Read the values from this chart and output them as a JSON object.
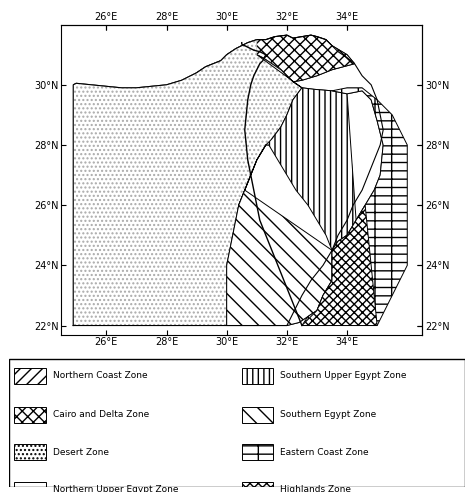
{
  "xlim": [
    24.5,
    36.5
  ],
  "ylim": [
    21.7,
    32.0
  ],
  "xticks": [
    26,
    28,
    30,
    32,
    34
  ],
  "yticks": [
    22,
    24,
    26,
    28,
    30
  ],
  "map_xlim": [
    24.7,
    36.3
  ],
  "map_ylim": [
    22.0,
    31.8
  ],
  "northern_coast": {
    "label": "Northern Coast Zone",
    "hatch": "///",
    "pts": [
      [
        24.9,
        30.1
      ],
      [
        25.2,
        30.2
      ],
      [
        26.0,
        30.3
      ],
      [
        26.8,
        30.3
      ],
      [
        27.5,
        30.25
      ],
      [
        28.0,
        30.25
      ],
      [
        28.5,
        30.3
      ],
      [
        28.9,
        30.5
      ],
      [
        29.2,
        30.7
      ],
      [
        29.5,
        30.8
      ],
      [
        29.8,
        31.0
      ],
      [
        30.0,
        31.1
      ],
      [
        30.2,
        31.2
      ],
      [
        30.5,
        31.3
      ],
      [
        30.7,
        31.4
      ],
      [
        31.0,
        31.5
      ],
      [
        31.3,
        31.5
      ],
      [
        31.6,
        31.6
      ],
      [
        32.0,
        31.65
      ],
      [
        32.2,
        31.55
      ],
      [
        32.1,
        31.45
      ],
      [
        31.9,
        31.35
      ],
      [
        31.6,
        31.3
      ],
      [
        31.3,
        31.3
      ],
      [
        31.0,
        31.25
      ],
      [
        30.7,
        31.1
      ],
      [
        30.5,
        31.0
      ],
      [
        30.2,
        30.9
      ],
      [
        30.0,
        30.8
      ],
      [
        29.8,
        30.7
      ],
      [
        29.5,
        30.6
      ],
      [
        29.2,
        30.45
      ],
      [
        29.0,
        30.3
      ],
      [
        28.5,
        30.15
      ],
      [
        28.0,
        30.0
      ],
      [
        27.5,
        29.95
      ],
      [
        27.0,
        29.9
      ],
      [
        26.5,
        29.9
      ],
      [
        26.0,
        29.95
      ],
      [
        25.5,
        30.0
      ],
      [
        25.0,
        30.0
      ],
      [
        24.9,
        30.05
      ]
    ]
  },
  "cairo_delta": {
    "label": "Cairo and Delta Zone",
    "hatch": "xxx",
    "pts": [
      [
        30.0,
        31.1
      ],
      [
        30.2,
        31.2
      ],
      [
        30.5,
        31.3
      ],
      [
        30.7,
        31.4
      ],
      [
        31.0,
        31.5
      ],
      [
        31.3,
        31.5
      ],
      [
        31.6,
        31.6
      ],
      [
        32.0,
        31.65
      ],
      [
        32.2,
        31.55
      ],
      [
        32.5,
        31.6
      ],
      [
        32.8,
        31.65
      ],
      [
        33.0,
        31.6
      ],
      [
        33.3,
        31.5
      ],
      [
        33.6,
        31.3
      ],
      [
        34.0,
        31.0
      ],
      [
        34.2,
        30.7
      ],
      [
        34.5,
        30.3
      ],
      [
        34.6,
        30.0
      ],
      [
        34.5,
        29.9
      ],
      [
        34.2,
        29.85
      ],
      [
        33.8,
        29.9
      ],
      [
        33.5,
        30.0
      ],
      [
        33.2,
        30.0
      ],
      [
        32.9,
        29.95
      ],
      [
        32.5,
        29.9
      ],
      [
        32.2,
        30.1
      ],
      [
        31.8,
        30.3
      ],
      [
        31.5,
        30.5
      ],
      [
        31.2,
        30.7
      ],
      [
        31.0,
        31.0
      ],
      [
        30.7,
        31.1
      ],
      [
        30.5,
        31.0
      ],
      [
        30.2,
        30.9
      ],
      [
        30.0,
        30.8
      ],
      [
        30.0,
        31.1
      ]
    ]
  },
  "desert": {
    "label": "Desert Zone",
    "hatch": "....",
    "pts": [
      [
        24.9,
        30.05
      ],
      [
        25.0,
        30.0
      ],
      [
        25.5,
        30.0
      ],
      [
        26.0,
        29.95
      ],
      [
        26.5,
        29.9
      ],
      [
        27.0,
        29.9
      ],
      [
        27.5,
        29.95
      ],
      [
        28.0,
        30.0
      ],
      [
        28.5,
        30.15
      ],
      [
        29.0,
        30.3
      ],
      [
        29.2,
        30.45
      ],
      [
        29.5,
        30.6
      ],
      [
        29.8,
        30.7
      ],
      [
        30.0,
        30.8
      ],
      [
        30.2,
        30.9
      ],
      [
        30.5,
        31.0
      ],
      [
        30.7,
        31.1
      ],
      [
        31.0,
        31.0
      ],
      [
        31.2,
        30.7
      ],
      [
        31.5,
        30.5
      ],
      [
        31.8,
        30.3
      ],
      [
        32.2,
        30.1
      ],
      [
        32.5,
        29.9
      ],
      [
        32.2,
        29.5
      ],
      [
        31.9,
        29.0
      ],
      [
        31.6,
        28.5
      ],
      [
        31.3,
        28.0
      ],
      [
        31.0,
        27.5
      ],
      [
        30.8,
        27.0
      ],
      [
        30.6,
        26.5
      ],
      [
        30.4,
        26.0
      ],
      [
        30.3,
        25.5
      ],
      [
        30.2,
        25.0
      ],
      [
        30.1,
        24.5
      ],
      [
        30.0,
        24.0
      ],
      [
        30.0,
        23.5
      ],
      [
        30.0,
        22.0
      ],
      [
        25.0,
        22.0
      ],
      [
        24.9,
        30.05
      ]
    ]
  },
  "northern_upper_egypt": {
    "label": "Northern Upper Egypt Zone",
    "hatch": "===",
    "pts": [
      [
        31.0,
        31.0
      ],
      [
        31.2,
        30.7
      ],
      [
        31.5,
        30.5
      ],
      [
        31.8,
        30.3
      ],
      [
        32.2,
        30.1
      ],
      [
        32.5,
        29.9
      ],
      [
        32.9,
        29.95
      ],
      [
        33.2,
        30.0
      ],
      [
        33.5,
        30.0
      ],
      [
        33.8,
        29.9
      ],
      [
        34.2,
        29.85
      ],
      [
        34.5,
        29.9
      ],
      [
        34.6,
        30.0
      ],
      [
        34.8,
        29.5
      ],
      [
        35.0,
        28.8
      ],
      [
        35.2,
        28.0
      ],
      [
        35.2,
        27.5
      ],
      [
        35.1,
        27.0
      ],
      [
        34.9,
        26.5
      ],
      [
        34.6,
        26.0
      ],
      [
        34.3,
        25.5
      ],
      [
        34.0,
        25.0
      ],
      [
        33.7,
        24.8
      ],
      [
        33.5,
        24.5
      ],
      [
        33.3,
        25.0
      ],
      [
        33.0,
        25.5
      ],
      [
        32.7,
        26.0
      ],
      [
        32.3,
        26.5
      ],
      [
        32.0,
        27.0
      ],
      [
        31.7,
        27.5
      ],
      [
        31.4,
        28.0
      ],
      [
        31.1,
        28.5
      ],
      [
        30.8,
        29.0
      ],
      [
        30.6,
        29.5
      ],
      [
        30.5,
        30.0
      ],
      [
        30.8,
        30.5
      ],
      [
        31.0,
        31.0
      ]
    ]
  },
  "southern_upper_egypt": {
    "label": "Southern Upper Egypt Zone",
    "hatch": "|||",
    "pts": [
      [
        30.0,
        24.0
      ],
      [
        30.1,
        24.5
      ],
      [
        30.2,
        25.0
      ],
      [
        30.3,
        25.5
      ],
      [
        30.4,
        26.0
      ],
      [
        30.6,
        26.5
      ],
      [
        30.8,
        27.0
      ],
      [
        31.0,
        27.5
      ],
      [
        31.3,
        28.0
      ],
      [
        31.4,
        28.0
      ],
      [
        31.7,
        27.5
      ],
      [
        32.0,
        27.0
      ],
      [
        32.3,
        26.5
      ],
      [
        32.7,
        26.0
      ],
      [
        33.0,
        25.5
      ],
      [
        33.3,
        25.0
      ],
      [
        33.5,
        24.5
      ],
      [
        33.5,
        24.0
      ],
      [
        33.5,
        23.5
      ],
      [
        33.2,
        23.0
      ],
      [
        33.0,
        22.8
      ],
      [
        32.7,
        22.5
      ],
      [
        32.4,
        22.3
      ],
      [
        32.0,
        22.1
      ],
      [
        31.6,
        22.0
      ],
      [
        31.2,
        22.0
      ],
      [
        30.8,
        22.0
      ],
      [
        30.5,
        22.0
      ],
      [
        30.2,
        22.0
      ],
      [
        30.0,
        22.0
      ],
      [
        30.0,
        24.0
      ]
    ]
  },
  "southern_egypt": {
    "label": "Southern Egypt Zone",
    "hatch": "\\\\",
    "pts": [
      [
        30.0,
        24.0
      ],
      [
        30.0,
        22.0
      ],
      [
        29.5,
        22.0
      ],
      [
        29.2,
        22.2
      ],
      [
        29.0,
        22.5
      ],
      [
        29.2,
        23.0
      ],
      [
        29.5,
        23.5
      ],
      [
        29.8,
        24.0
      ],
      [
        30.0,
        24.0
      ]
    ]
  },
  "eastern_coast": {
    "label": "Eastern Coast Zone",
    "hatch": "-|-",
    "pts": [
      [
        34.3,
        25.5
      ],
      [
        34.6,
        26.0
      ],
      [
        34.9,
        26.5
      ],
      [
        35.1,
        27.0
      ],
      [
        35.2,
        27.5
      ],
      [
        35.2,
        28.0
      ],
      [
        35.0,
        28.8
      ],
      [
        34.8,
        29.5
      ],
      [
        34.6,
        30.0
      ],
      [
        34.5,
        29.9
      ],
      [
        34.2,
        29.85
      ],
      [
        34.0,
        25.0
      ],
      [
        34.3,
        25.5
      ]
    ]
  },
  "highlands": {
    "label": "Highlands Zone",
    "hatch": "xxxx",
    "pts": [
      [
        33.5,
        24.5
      ],
      [
        33.7,
        24.8
      ],
      [
        34.0,
        25.0
      ],
      [
        34.3,
        25.5
      ],
      [
        34.0,
        25.0
      ],
      [
        35.5,
        26.0
      ],
      [
        35.8,
        25.0
      ],
      [
        36.0,
        24.0
      ],
      [
        35.8,
        23.0
      ],
      [
        35.5,
        22.5
      ],
      [
        35.0,
        22.0
      ],
      [
        34.5,
        22.0
      ],
      [
        34.0,
        22.5
      ],
      [
        33.7,
        23.0
      ],
      [
        33.5,
        23.5
      ],
      [
        33.5,
        24.0
      ],
      [
        33.5,
        24.5
      ]
    ]
  },
  "legend_items": [
    {
      "label": "Northern Coast Zone",
      "hatch": "///",
      "left": true
    },
    {
      "label": "Cairo and Delta Zone",
      "hatch": "xxx",
      "left": true
    },
    {
      "label": "Desert Zone",
      "hatch": "....",
      "left": true
    },
    {
      "label": "Northern Upper Egypt Zone",
      "hatch": "===",
      "left": true
    },
    {
      "label": "Southern Upper Egypt Zone",
      "hatch": "|||",
      "left": false
    },
    {
      "label": "Southern Egypt Zone",
      "hatch": "\\\\",
      "left": false
    },
    {
      "label": "Eastern Coast Zone",
      "hatch": "-|-",
      "left": false
    },
    {
      "label": "Highlands Zone",
      "hatch": "xxxx",
      "left": false
    }
  ]
}
